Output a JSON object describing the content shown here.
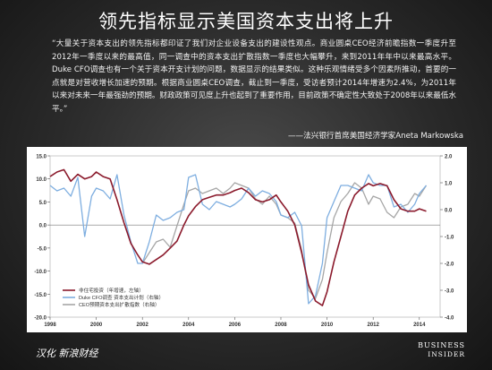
{
  "title": "领先指标显示美国资本支出将上升",
  "quote": "“大量关于资本支出的领先指标都印证了我们对企业设备支出的建设性观点。商业圆桌CEO经济前瞻指数一季度升至2012年一季度以来的最高值，同一调查中的资本支出扩散指数一季度也大幅攀升，来到2011年年中以来最高水平。Duke CFO调查也有一个关于资本开支计划的问题，数据显示的结果类似。这种乐观情绪受多个因素所推动，首要的一点就是对营收增长加速的预期。根据商业圆桌CEO调查，截止到一季度，受访者预计2014年增速为2.4%，为2011年以来对未来一年最强劲的预期。财政政策可见度上升也起到了重要作用，目前政策不确定性大致处于2008年以来最低水平。”",
  "attribution": "——法兴银行首席美国经济学家Aneta Markowska",
  "footer": {
    "left": "汉化 新浪财经",
    "brand_line1": "BUSINESS",
    "brand_line2": "INSIDER"
  },
  "colors": {
    "series1": "#8b1a2c",
    "series2": "#7eaee0",
    "series3": "#a6a6a6"
  },
  "chart_data": {
    "type": "line",
    "x_ticks": [
      "1998",
      "2000",
      "2002",
      "2004",
      "2006",
      "2008",
      "2010",
      "2012",
      "2014"
    ],
    "xlim": [
      1998,
      2014.9
    ],
    "y_left_ticks": [
      "15.0",
      "10.0",
      "5.0",
      "0.0",
      "-5.0",
      "-10.0",
      "-15.0",
      "-20.0"
    ],
    "ylim_left": [
      -20,
      15
    ],
    "y_right_ticks": [
      "2.0",
      "1.0",
      "0.0",
      "-1.0",
      "-2.0",
      "-3.0",
      "-4.0"
    ],
    "ylim_right": [
      -4,
      2
    ],
    "legend_position": "bottom-left",
    "series": [
      {
        "name": "非住宅投资（年增速，左轴）",
        "axis": "left",
        "color": "#8b1a2c",
        "points": [
          [
            1998.0,
            10.5
          ],
          [
            1998.3,
            11.5
          ],
          [
            1998.6,
            12.0
          ],
          [
            1998.9,
            9.5
          ],
          [
            1999.2,
            11.0
          ],
          [
            1999.5,
            10.0
          ],
          [
            1999.8,
            10.5
          ],
          [
            2000.0,
            11.5
          ],
          [
            2000.3,
            10.5
          ],
          [
            2000.6,
            10.0
          ],
          [
            2000.9,
            5.5
          ],
          [
            2001.2,
            0.5
          ],
          [
            2001.5,
            -4.0
          ],
          [
            2001.8,
            -6.5
          ],
          [
            2002.0,
            -8.0
          ],
          [
            2002.3,
            -8.5
          ],
          [
            2002.6,
            -7.5
          ],
          [
            2002.9,
            -6.5
          ],
          [
            2003.2,
            -5.0
          ],
          [
            2003.5,
            -3.5
          ],
          [
            2003.8,
            0.0
          ],
          [
            2004.0,
            2.0
          ],
          [
            2004.3,
            4.0
          ],
          [
            2004.6,
            5.5
          ],
          [
            2004.9,
            6.0
          ],
          [
            2005.2,
            6.5
          ],
          [
            2005.5,
            6.5
          ],
          [
            2005.8,
            7.0
          ],
          [
            2006.0,
            7.5
          ],
          [
            2006.3,
            8.0
          ],
          [
            2006.6,
            7.0
          ],
          [
            2006.9,
            5.5
          ],
          [
            2007.2,
            5.0
          ],
          [
            2007.5,
            5.5
          ],
          [
            2007.8,
            6.5
          ],
          [
            2008.0,
            5.0
          ],
          [
            2008.3,
            3.0
          ],
          [
            2008.6,
            0.0
          ],
          [
            2008.9,
            -6.0
          ],
          [
            2009.2,
            -13.0
          ],
          [
            2009.5,
            -16.5
          ],
          [
            2009.8,
            -17.5
          ],
          [
            2010.0,
            -14.5
          ],
          [
            2010.3,
            -8.0
          ],
          [
            2010.6,
            -2.5
          ],
          [
            2010.9,
            3.0
          ],
          [
            2011.2,
            6.5
          ],
          [
            2011.5,
            8.0
          ],
          [
            2011.8,
            9.0
          ],
          [
            2012.0,
            8.5
          ],
          [
            2012.3,
            9.0
          ],
          [
            2012.6,
            8.5
          ],
          [
            2012.9,
            5.5
          ],
          [
            2013.2,
            3.5
          ],
          [
            2013.5,
            3.0
          ],
          [
            2013.8,
            3.0
          ],
          [
            2014.0,
            3.5
          ],
          [
            2014.3,
            3.0
          ]
        ]
      },
      {
        "name": "Duke CFO调查 资本支出计划（右轴）",
        "axis": "right",
        "color": "#7eaee0",
        "points": [
          [
            1998.0,
            0.9
          ],
          [
            1998.3,
            0.7
          ],
          [
            1998.6,
            0.8
          ],
          [
            1998.9,
            0.5
          ],
          [
            1999.2,
            1.2
          ],
          [
            1999.5,
            -1.0
          ],
          [
            1999.8,
            0.5
          ],
          [
            2000.0,
            0.8
          ],
          [
            2000.3,
            0.7
          ],
          [
            2000.6,
            0.4
          ],
          [
            2000.9,
            1.3
          ],
          [
            2001.2,
            -0.2
          ],
          [
            2001.5,
            -1.2
          ],
          [
            2001.8,
            -2.0
          ],
          [
            2002.0,
            -2.0
          ],
          [
            2002.3,
            -1.2
          ],
          [
            2002.6,
            -0.2
          ],
          [
            2002.9,
            -0.4
          ],
          [
            2003.2,
            -0.3
          ],
          [
            2003.5,
            -0.1
          ],
          [
            2003.8,
            0.0
          ],
          [
            2004.0,
            1.2
          ],
          [
            2004.3,
            1.3
          ],
          [
            2004.6,
            0.2
          ],
          [
            2004.9,
            0.0
          ],
          [
            2005.2,
            0.3
          ],
          [
            2005.5,
            0.2
          ],
          [
            2005.8,
            0.1
          ],
          [
            2006.0,
            0.2
          ],
          [
            2006.3,
            0.4
          ],
          [
            2006.6,
            0.8
          ],
          [
            2006.9,
            0.5
          ],
          [
            2007.2,
            0.7
          ],
          [
            2007.5,
            0.6
          ],
          [
            2007.8,
            0.3
          ],
          [
            2008.0,
            -0.2
          ],
          [
            2008.3,
            -0.3
          ],
          [
            2008.6,
            -0.1
          ],
          [
            2008.9,
            -0.6
          ],
          [
            2009.2,
            -3.5
          ],
          [
            2009.5,
            -3.2
          ],
          [
            2009.8,
            -2.0
          ],
          [
            2010.0,
            -0.3
          ],
          [
            2010.3,
            0.3
          ],
          [
            2010.6,
            0.9
          ],
          [
            2010.9,
            0.9
          ],
          [
            2011.2,
            0.8
          ],
          [
            2011.5,
            0.7
          ],
          [
            2011.8,
            1.3
          ],
          [
            2012.0,
            1.0
          ],
          [
            2012.3,
            0.9
          ],
          [
            2012.6,
            0.9
          ],
          [
            2012.9,
            0.1
          ],
          [
            2013.2,
            0.2
          ],
          [
            2013.5,
            -0.1
          ],
          [
            2013.8,
            0.2
          ],
          [
            2014.0,
            0.6
          ],
          [
            2014.3,
            0.9
          ]
        ]
      },
      {
        "name": "CEO预期资本支出扩散指数（右轴）",
        "axis": "right",
        "color": "#a6a6a6",
        "points": [
          [
            2002.0,
            -2.0
          ],
          [
            2002.3,
            -1.6
          ],
          [
            2002.6,
            -1.2
          ],
          [
            2002.9,
            -1.1
          ],
          [
            2003.2,
            -1.4
          ],
          [
            2003.5,
            -0.6
          ],
          [
            2003.8,
            0.2
          ],
          [
            2004.0,
            0.7
          ],
          [
            2004.3,
            0.8
          ],
          [
            2004.6,
            0.6
          ],
          [
            2004.9,
            0.7
          ],
          [
            2005.2,
            0.8
          ],
          [
            2005.5,
            0.6
          ],
          [
            2005.8,
            0.8
          ],
          [
            2006.0,
            1.0
          ],
          [
            2006.3,
            0.9
          ],
          [
            2006.6,
            0.8
          ],
          [
            2006.9,
            0.4
          ],
          [
            2007.2,
            0.2
          ],
          [
            2007.5,
            0.5
          ],
          [
            2007.8,
            0.2
          ],
          [
            2008.0,
            -0.2
          ],
          [
            2008.3,
            -0.3
          ],
          [
            2008.6,
            -0.5
          ],
          [
            2008.9,
            -1.5
          ],
          [
            2009.2,
            -3.0
          ],
          [
            2009.5,
            -3.3
          ],
          [
            2009.8,
            -2.6
          ],
          [
            2010.0,
            -1.6
          ],
          [
            2010.3,
            -0.3
          ],
          [
            2010.6,
            0.3
          ],
          [
            2010.9,
            0.6
          ],
          [
            2011.2,
            1.0
          ],
          [
            2011.5,
            0.8
          ],
          [
            2011.8,
            0.2
          ],
          [
            2012.0,
            0.5
          ],
          [
            2012.3,
            0.4
          ],
          [
            2012.6,
            -0.1
          ],
          [
            2012.9,
            -0.3
          ],
          [
            2013.2,
            0.1
          ],
          [
            2013.5,
            0.2
          ],
          [
            2013.8,
            0.6
          ],
          [
            2014.0,
            0.5
          ],
          [
            2014.3,
            0.9
          ]
        ]
      }
    ]
  }
}
